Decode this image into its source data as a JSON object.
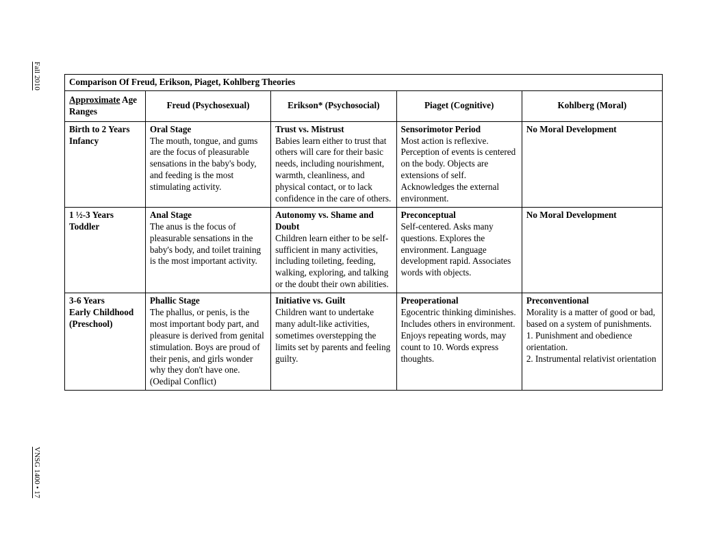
{
  "marginTop": "Fall 2010",
  "marginBottom": "VNSG 1400 • 17",
  "table": {
    "title": "Comparison Of Freud, Erikson, Piaget, Kohlberg Theories",
    "headers": {
      "col1_underlined": "Approximate",
      "col1_rest": " Age Ranges",
      "col2": "Freud (Psychosexual)",
      "col3": "Erikson* (Psychosocial)",
      "col4": "Piaget (Cognitive)",
      "col5": "Kohlberg (Moral)"
    },
    "rows": [
      {
        "age_line1": "Birth to 2 Years",
        "age_line2": "Infancy",
        "freud_title": "Oral Stage",
        "freud_text": "The mouth, tongue, and gums are the focus of pleasurable sensations in the baby's body, and feeding is the most stimulating activity.",
        "erikson_title": "Trust vs. Mistrust",
        "erikson_text": "Babies learn either to trust that others will care for their basic needs, including nourishment, warmth, cleanliness, and physical contact, or to lack confidence in the care of others.",
        "piaget_title": "Sensorimotor Period",
        "piaget_text": "Most action is reflexive. Perception of events is centered on the body. Objects are extensions of self. Acknowledges the external environment.",
        "kohlberg_title": "No Moral Development",
        "kohlberg_text": ""
      },
      {
        "age_line1": "1 ½-3 Years",
        "age_line2": "Toddler",
        "freud_title": "Anal Stage",
        "freud_text": "The anus is the focus of pleasurable sensations in the baby's body, and toilet training is the most important activity.",
        "erikson_title": "Autonomy vs. Shame and Doubt",
        "erikson_text": "Children learn either to be self-sufficient in many activities, including toileting, feeding, walking, exploring, and talking or the doubt their own abilities.",
        "piaget_title": "Preconceptual",
        "piaget_text": "Self-centered. Asks many questions. Explores the environment. Language development rapid. Associates words with objects.",
        "kohlberg_title": "No Moral Development",
        "kohlberg_text": ""
      },
      {
        "age_line1": "3-6 Years",
        "age_line2": "Early Childhood",
        "age_line3": "(Preschool)",
        "freud_title": "Phallic Stage",
        "freud_text": "The phallus, or penis, is the most important body part, and pleasure is derived from genital stimulation. Boys are proud of their penis, and girls wonder why they don't have one. (Oedipal Conflict)",
        "erikson_title": "Initiative vs. Guilt",
        "erikson_text": "Children want to undertake many adult-like activities, sometimes overstepping the limits set by parents and feeling guilty.",
        "piaget_title": "Preoperational",
        "piaget_text": "Egocentric thinking diminishes. Includes others in environment. Enjoys repeating words, may count to 10. Words express thoughts.",
        "kohlberg_title": "Preconventional",
        "kohlberg_text": "Morality is a matter of good or bad, based on a system of punishments.\n1. Punishment and obedience orientation.\n2. Instrumental relativist orientation"
      }
    ]
  }
}
